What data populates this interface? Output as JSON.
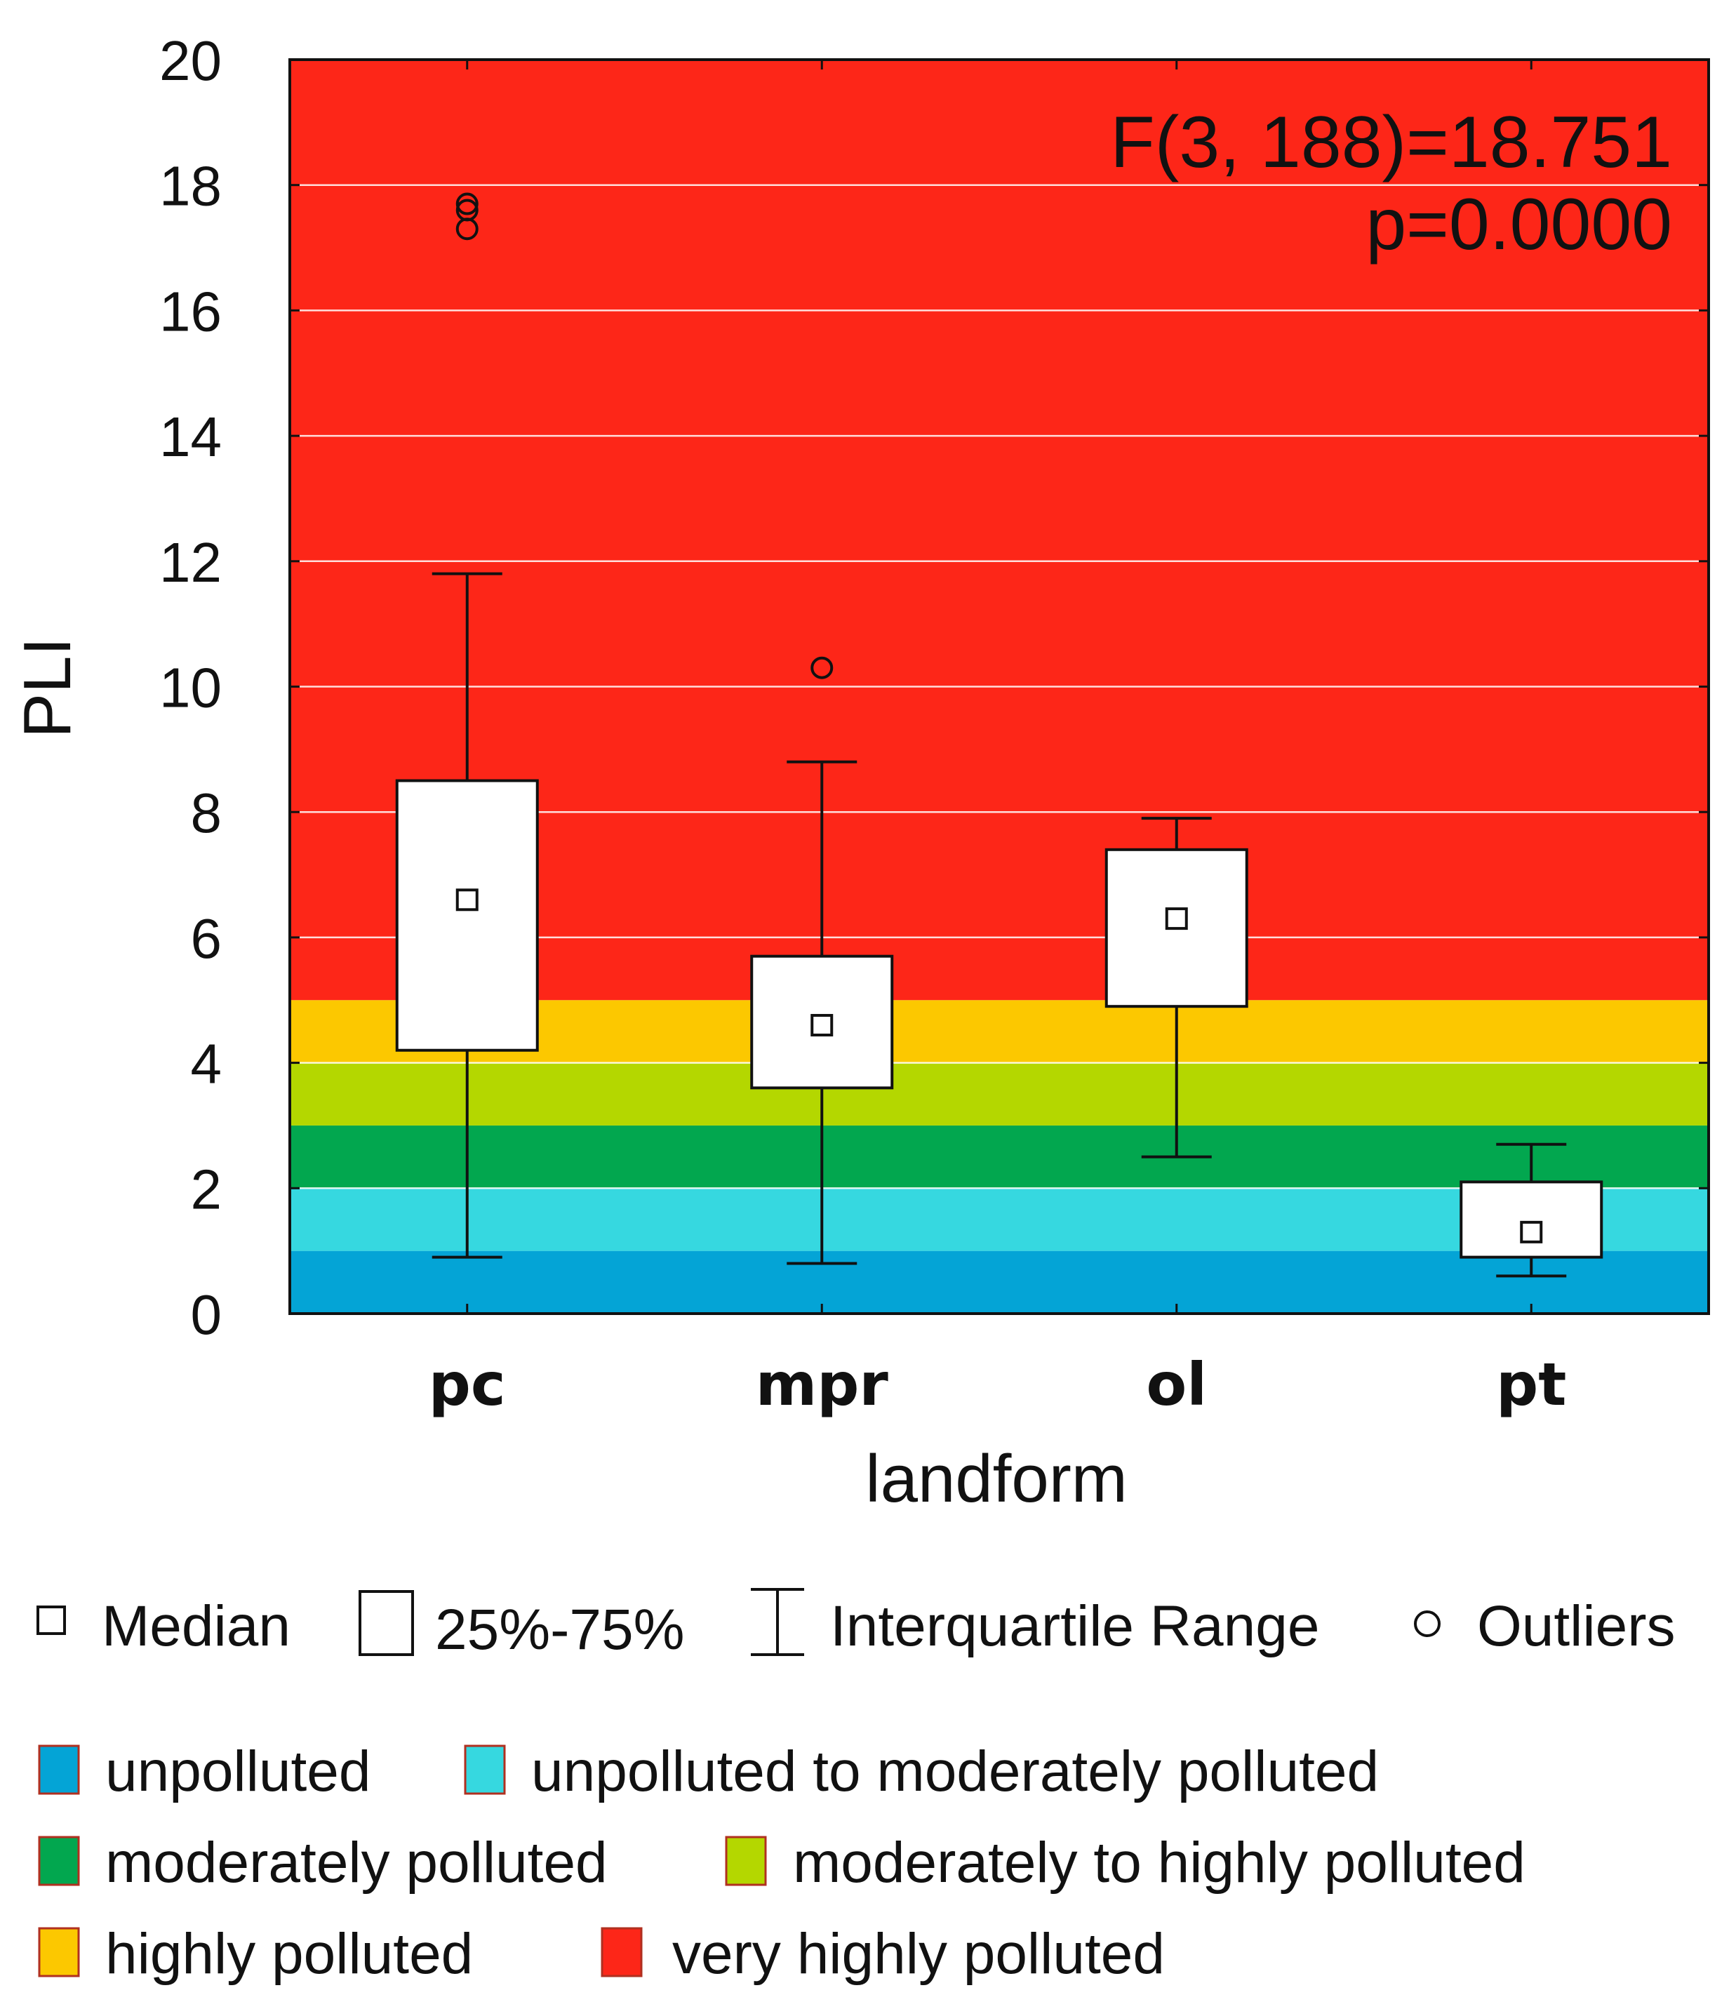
{
  "chart_data": {
    "type": "box",
    "xlabel": "landform",
    "ylabel": "PLI",
    "ylim": [
      0,
      20
    ],
    "yticks": [
      0,
      2,
      4,
      6,
      8,
      10,
      12,
      14,
      16,
      18,
      20
    ],
    "categories": [
      "pc",
      "mpr",
      "ol",
      "pt"
    ],
    "boxes": [
      {
        "category": "pc",
        "whisker_low": 0.9,
        "q1": 4.2,
        "median": 6.6,
        "q3": 8.5,
        "whisker_high": 11.8,
        "outliers": [
          17.3,
          17.6,
          17.7
        ]
      },
      {
        "category": "mpr",
        "whisker_low": 0.8,
        "q1": 3.6,
        "median": 4.6,
        "q3": 5.7,
        "whisker_high": 8.8,
        "outliers": [
          10.3
        ]
      },
      {
        "category": "ol",
        "whisker_low": 2.5,
        "q1": 4.9,
        "median": 6.3,
        "q3": 7.4,
        "whisker_high": 7.9,
        "outliers": []
      },
      {
        "category": "pt",
        "whisker_low": 0.6,
        "q1": 0.9,
        "median": 1.3,
        "q3": 2.1,
        "whisker_high": 2.7,
        "outliers": []
      }
    ],
    "bands": [
      {
        "from": 0,
        "to": 1,
        "label": "unpolluted",
        "color": "#04a4d6"
      },
      {
        "from": 1,
        "to": 2,
        "label": "unpolluted to moderately polluted",
        "color": "#36d8e0"
      },
      {
        "from": 2,
        "to": 3,
        "label": "moderately polluted",
        "color": "#02a74f"
      },
      {
        "from": 3,
        "to": 4,
        "label": "moderately to highly polluted",
        "color": "#b4d700"
      },
      {
        "from": 4,
        "to": 5,
        "label": "highly polluted",
        "color": "#fcc800"
      },
      {
        "from": 5,
        "to": 20,
        "label": "very highly polluted",
        "color": "#fd2618"
      }
    ],
    "annotation": [
      "F(3, 188)=18.751",
      "p=0.0000"
    ],
    "box_legend": [
      "Median",
      "25%-75%",
      "Interquartile Range",
      "Outliers"
    ],
    "grid": true
  }
}
